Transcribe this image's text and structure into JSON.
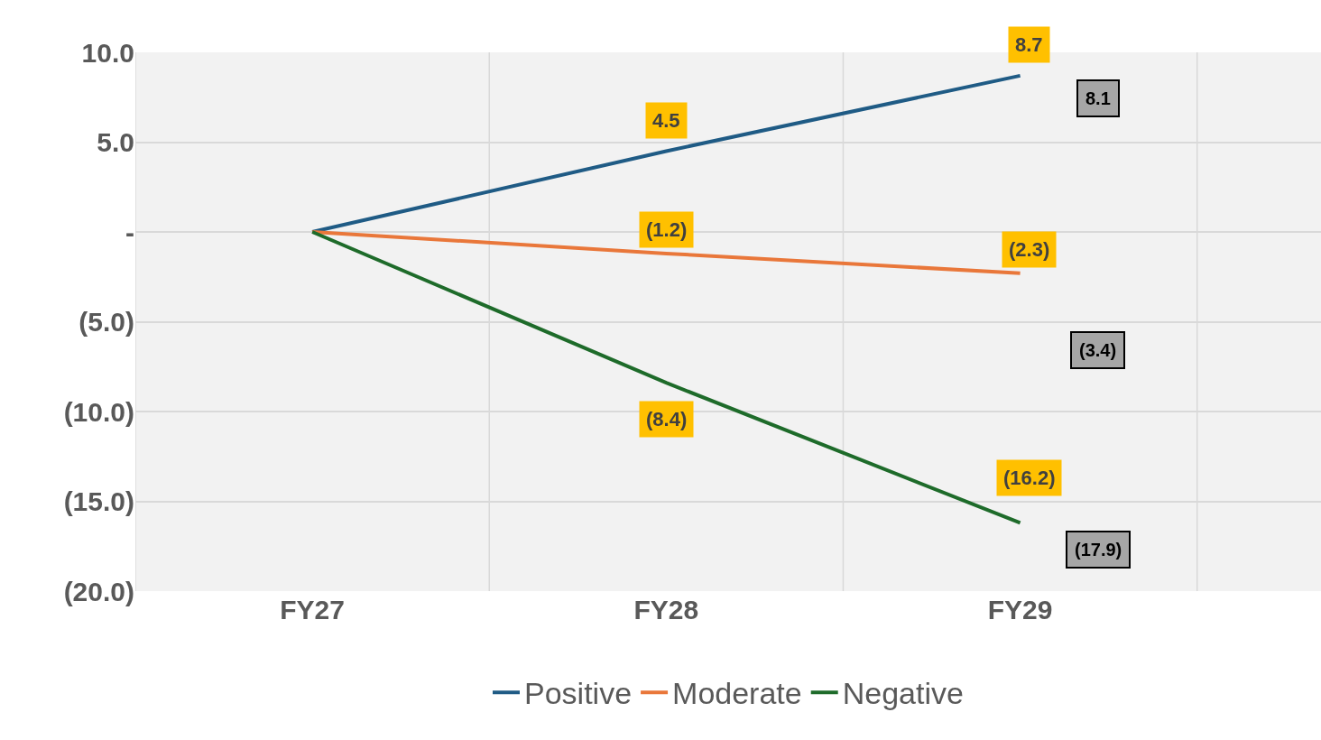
{
  "chart_data": {
    "type": "line",
    "categories": [
      "FY27",
      "FY28",
      "FY29"
    ],
    "series": [
      {
        "name": "Positive",
        "color": "#1f5b85",
        "values": [
          0,
          4.5,
          8.7
        ],
        "value_labels": [
          null,
          "4.5",
          "8.7"
        ]
      },
      {
        "name": "Moderate",
        "color": "#e9773a",
        "values": [
          0,
          -1.2,
          -2.3
        ],
        "value_labels": [
          null,
          "(1.2)",
          "(2.3)"
        ]
      },
      {
        "name": "Negative",
        "color": "#1e6b2a",
        "values": [
          0,
          -8.4,
          -16.2
        ],
        "value_labels": [
          null,
          "(8.4)",
          "(16.2)"
        ]
      }
    ],
    "ylim": [
      -20,
      10
    ],
    "yticks": [
      {
        "value": 10,
        "label": "10.0"
      },
      {
        "value": 5,
        "label": "5.0"
      },
      {
        "value": 0,
        "label": "-"
      },
      {
        "value": -5,
        "label": "(5.0)"
      },
      {
        "value": -10,
        "label": "(10.0)"
      },
      {
        "value": -15,
        "label": "(15.0)"
      },
      {
        "value": -20,
        "label": "(20.0)"
      }
    ],
    "annotations": [
      "8.1",
      "(3.4)",
      "(17.9)"
    ],
    "grid": true,
    "legend": "bottom",
    "marker": "none",
    "line_style": "solid"
  }
}
